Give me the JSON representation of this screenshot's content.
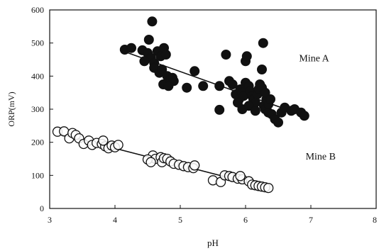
{
  "chart_data": {
    "type": "scatter",
    "xlabel": "pH",
    "ylabel": "ORP(mV)",
    "xlim": [
      3,
      8
    ],
    "ylim": [
      0,
      600
    ],
    "xticks": [
      "3",
      "4",
      "5",
      "6",
      "7",
      "8"
    ],
    "yticks": [
      "0",
      "100",
      "200",
      "300",
      "400",
      "500",
      "600"
    ],
    "grid": false,
    "annotations": [
      {
        "text": "Mine A",
        "x": 7.05,
        "y": 445
      },
      {
        "text": "Mine B",
        "x": 7.15,
        "y": 148
      }
    ],
    "series": [
      {
        "name": "Mine A",
        "marker": "filled-circle",
        "color": "#111111",
        "trendline": {
          "x": [
            4.2,
            6.9
          ],
          "y": [
            470,
            280
          ]
        },
        "points": [
          [
            4.15,
            480
          ],
          [
            4.25,
            485
          ],
          [
            4.42,
            478
          ],
          [
            4.5,
            470
          ],
          [
            4.55,
            455
          ],
          [
            4.6,
            440
          ],
          [
            4.45,
            445
          ],
          [
            4.52,
            510
          ],
          [
            4.57,
            565
          ],
          [
            4.65,
            475
          ],
          [
            4.7,
            460
          ],
          [
            4.75,
            485
          ],
          [
            4.78,
            465
          ],
          [
            4.6,
            425
          ],
          [
            4.68,
            410
          ],
          [
            4.72,
            420
          ],
          [
            4.8,
            400
          ],
          [
            4.85,
            390
          ],
          [
            4.9,
            385
          ],
          [
            4.74,
            375
          ],
          [
            4.82,
            370
          ],
          [
            4.88,
            395
          ],
          [
            5.1,
            365
          ],
          [
            5.22,
            415
          ],
          [
            5.35,
            370
          ],
          [
            5.6,
            370
          ],
          [
            5.6,
            298
          ],
          [
            5.7,
            465
          ],
          [
            5.75,
            385
          ],
          [
            5.8,
            375
          ],
          [
            5.85,
            345
          ],
          [
            5.9,
            330
          ],
          [
            5.92,
            360
          ],
          [
            5.95,
            350
          ],
          [
            5.97,
            340
          ],
          [
            6.0,
            445
          ],
          [
            6.02,
            460
          ],
          [
            6.0,
            380
          ],
          [
            6.05,
            370
          ],
          [
            6.07,
            355
          ],
          [
            6.1,
            340
          ],
          [
            6.12,
            330
          ],
          [
            6.15,
            320
          ],
          [
            6.18,
            345
          ],
          [
            6.2,
            360
          ],
          [
            6.22,
            375
          ],
          [
            6.25,
            365
          ],
          [
            6.25,
            420
          ],
          [
            6.27,
            500
          ],
          [
            6.28,
            310
          ],
          [
            6.3,
            300
          ],
          [
            6.32,
            330
          ],
          [
            6.35,
            290
          ],
          [
            6.4,
            285
          ],
          [
            6.45,
            270
          ],
          [
            6.5,
            260
          ],
          [
            6.55,
            290
          ],
          [
            6.6,
            305
          ],
          [
            6.7,
            295
          ],
          [
            6.75,
            300
          ],
          [
            6.85,
            290
          ],
          [
            6.9,
            280
          ],
          [
            5.95,
            300
          ],
          [
            6.05,
            310
          ],
          [
            6.15,
            295
          ],
          [
            5.88,
            320
          ],
          [
            6.35,
            315
          ],
          [
            6.3,
            350
          ],
          [
            6.38,
            330
          ]
        ]
      },
      {
        "name": "Mine B",
        "marker": "open-circle",
        "color": "#111111",
        "trendline": {
          "x": [
            3.15,
            6.35
          ],
          "y": [
            225,
            62
          ]
        },
        "points": [
          [
            3.12,
            232
          ],
          [
            3.22,
            233
          ],
          [
            3.3,
            212
          ],
          [
            3.35,
            228
          ],
          [
            3.4,
            222
          ],
          [
            3.45,
            212
          ],
          [
            3.52,
            195
          ],
          [
            3.6,
            205
          ],
          [
            3.65,
            192
          ],
          [
            3.72,
            198
          ],
          [
            3.8,
            195
          ],
          [
            3.85,
            188
          ],
          [
            3.9,
            182
          ],
          [
            3.95,
            190
          ],
          [
            4.0,
            185
          ],
          [
            4.05,
            192
          ],
          [
            3.82,
            205
          ],
          [
            4.58,
            160
          ],
          [
            4.62,
            150
          ],
          [
            4.7,
            155
          ],
          [
            4.72,
            140
          ],
          [
            4.75,
            152
          ],
          [
            4.8,
            150
          ],
          [
            4.85,
            142
          ],
          [
            4.9,
            135
          ],
          [
            4.98,
            132
          ],
          [
            5.05,
            128
          ],
          [
            5.12,
            125
          ],
          [
            5.2,
            122
          ],
          [
            5.22,
            130
          ],
          [
            4.5,
            148
          ],
          [
            4.55,
            140
          ],
          [
            5.5,
            85
          ],
          [
            5.62,
            80
          ],
          [
            5.68,
            100
          ],
          [
            5.75,
            98
          ],
          [
            5.8,
            95
          ],
          [
            5.88,
            90
          ],
          [
            5.95,
            88
          ],
          [
            6.05,
            82
          ],
          [
            6.1,
            72
          ],
          [
            6.15,
            70
          ],
          [
            6.2,
            68
          ],
          [
            6.25,
            66
          ],
          [
            6.3,
            64
          ],
          [
            6.35,
            62
          ],
          [
            5.92,
            98
          ]
        ]
      }
    ]
  }
}
